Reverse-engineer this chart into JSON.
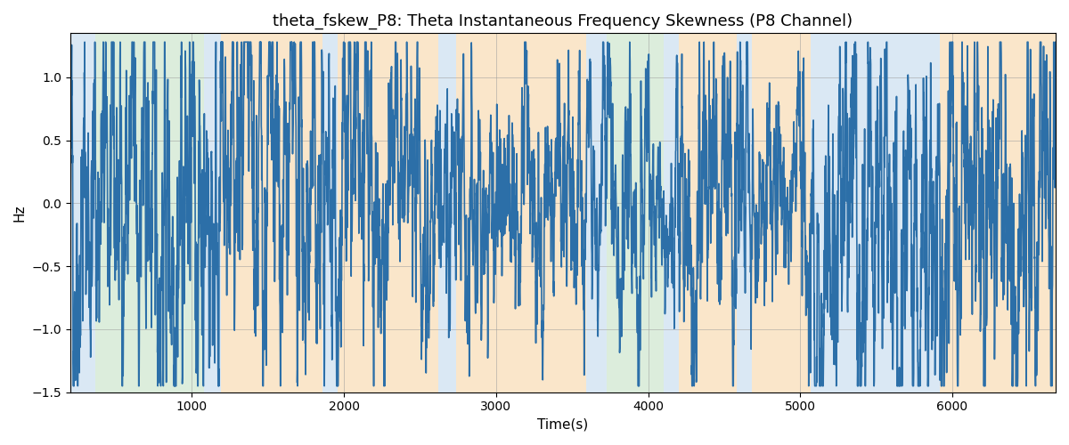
{
  "title": "theta_fskew_P8: Theta Instantaneous Frequency Skewness (P8 Channel)",
  "xlabel": "Time(s)",
  "ylabel": "Hz",
  "ylim": [
    -1.5,
    1.35
  ],
  "xlim": [
    200,
    6680
  ],
  "background_regions": [
    {
      "xmin": 200,
      "xmax": 365,
      "color": "#aecde8",
      "alpha": 0.45
    },
    {
      "xmin": 365,
      "xmax": 1080,
      "color": "#b2d8b2",
      "alpha": 0.45
    },
    {
      "xmin": 1080,
      "xmax": 1190,
      "color": "#aecde8",
      "alpha": 0.45
    },
    {
      "xmin": 1190,
      "xmax": 1860,
      "color": "#f5c98a",
      "alpha": 0.45
    },
    {
      "xmin": 1860,
      "xmax": 1960,
      "color": "#aecde8",
      "alpha": 0.45
    },
    {
      "xmin": 1960,
      "xmax": 2620,
      "color": "#f5c98a",
      "alpha": 0.45
    },
    {
      "xmin": 2620,
      "xmax": 2740,
      "color": "#aecde8",
      "alpha": 0.45
    },
    {
      "xmin": 2740,
      "xmax": 3590,
      "color": "#f5c98a",
      "alpha": 0.45
    },
    {
      "xmin": 3590,
      "xmax": 3730,
      "color": "#aecde8",
      "alpha": 0.45
    },
    {
      "xmin": 3730,
      "xmax": 4100,
      "color": "#b2d8b2",
      "alpha": 0.45
    },
    {
      "xmin": 4100,
      "xmax": 4200,
      "color": "#aecde8",
      "alpha": 0.45
    },
    {
      "xmin": 4200,
      "xmax": 4580,
      "color": "#f5c98a",
      "alpha": 0.45
    },
    {
      "xmin": 4580,
      "xmax": 4680,
      "color": "#aecde8",
      "alpha": 0.45
    },
    {
      "xmin": 4680,
      "xmax": 5070,
      "color": "#f5c98a",
      "alpha": 0.45
    },
    {
      "xmin": 5070,
      "xmax": 5810,
      "color": "#aecde8",
      "alpha": 0.45
    },
    {
      "xmin": 5810,
      "xmax": 5920,
      "color": "#aecde8",
      "alpha": 0.45
    },
    {
      "xmin": 5920,
      "xmax": 6680,
      "color": "#f5c98a",
      "alpha": 0.45
    }
  ],
  "line_color": "#2c6fa8",
  "line_width": 1.2,
  "grid_color": "#999999",
  "grid_alpha": 0.5,
  "grid_linewidth": 0.7,
  "title_fontsize": 13,
  "axis_label_fontsize": 11,
  "tick_fontsize": 10,
  "seed": 42
}
